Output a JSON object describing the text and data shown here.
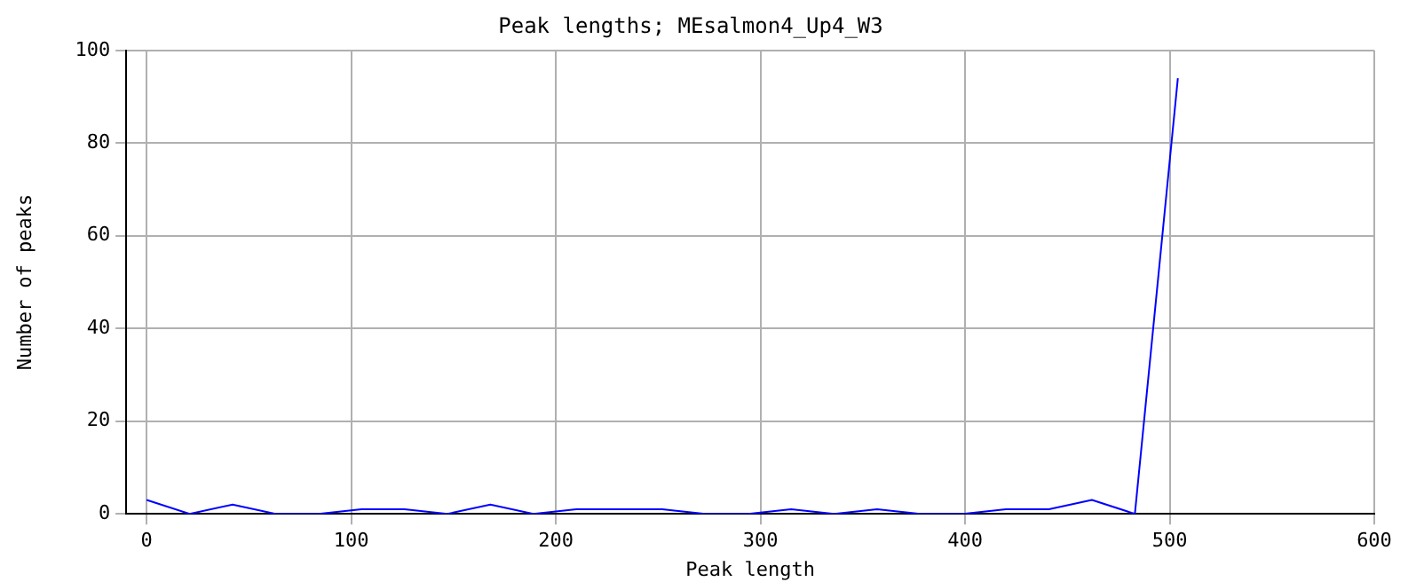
{
  "chart_data": {
    "type": "line",
    "title": "Peak lengths; MEsalmon4_Up4_W3",
    "xlabel": "Peak length",
    "ylabel": "Number of peaks",
    "x": [
      0,
      21,
      42,
      63,
      84,
      105,
      126,
      147,
      168,
      189,
      210,
      231,
      252,
      273,
      294,
      315,
      336,
      357,
      378,
      399,
      420,
      441,
      462,
      483,
      504
    ],
    "series": [
      {
        "color": "#0000ff",
        "values": [
          3,
          0,
          2,
          0,
          0,
          1,
          1,
          0,
          2,
          0,
          1,
          1,
          1,
          0,
          0,
          1,
          0,
          1,
          0,
          0,
          1,
          1,
          3,
          0,
          94
        ]
      }
    ],
    "xlim": [
      -10,
      600
    ],
    "xticks": [
      0,
      100,
      200,
      300,
      400,
      500,
      600
    ],
    "ylim": [
      0,
      100
    ],
    "yticks": [
      0,
      20,
      40,
      60,
      80,
      100
    ],
    "grid": true,
    "legend": false,
    "marker": "none",
    "line_style": "solid"
  }
}
